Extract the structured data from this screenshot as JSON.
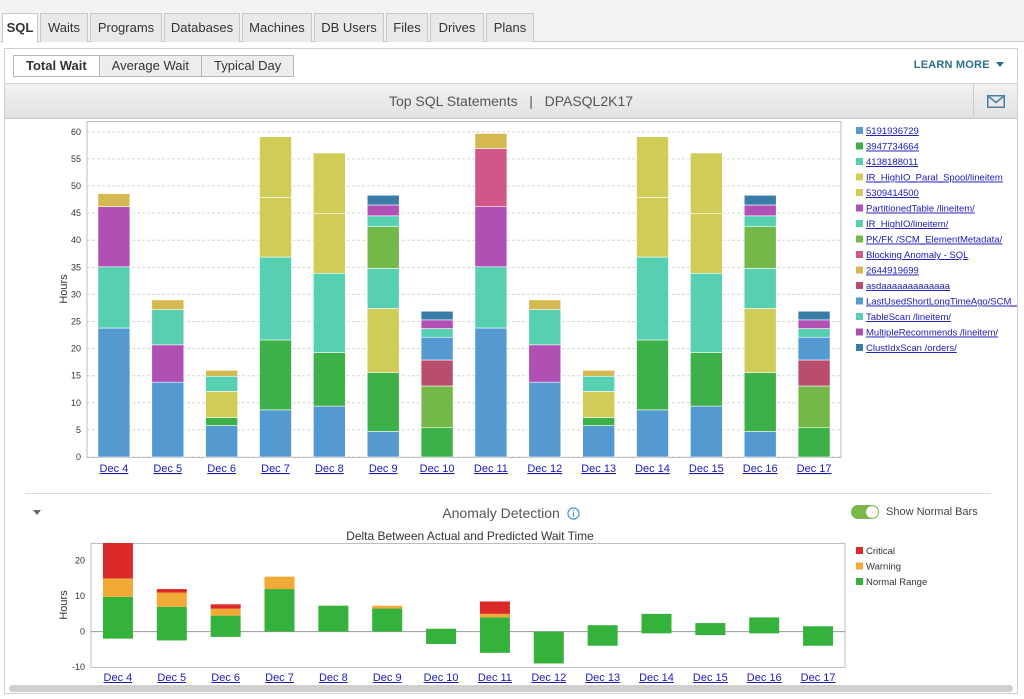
{
  "tabs": [
    "SQL",
    "Waits",
    "Programs",
    "Databases",
    "Machines",
    "DB Users",
    "Files",
    "Drives",
    "Plans"
  ],
  "active_tab": "SQL",
  "subtabs": [
    "Total Wait",
    "Average Wait",
    "Typical Day"
  ],
  "active_subtab": "Total Wait",
  "learn_more": "LEARN MORE",
  "chart_title": "Top SQL Statements   |   DPASQL2K17",
  "anomaly": {
    "title": "Anomaly Detection",
    "toggle_label": "Show Normal Bars",
    "toggle_on": true
  },
  "chart_data": [
    {
      "type": "bar",
      "stacked": true,
      "title": "Top SQL Statements | DPASQL2K17",
      "ylabel": "Hours",
      "ylim": [
        0,
        62
      ],
      "yticks": [
        0,
        5,
        10,
        15,
        20,
        25,
        30,
        35,
        40,
        45,
        50,
        55,
        60
      ],
      "categories": [
        "Dec 4",
        "Dec 5",
        "Dec 6",
        "Dec 7",
        "Dec 8",
        "Dec 9",
        "Dec 10",
        "Dec 11",
        "Dec 12",
        "Dec 13",
        "Dec 14",
        "Dec 15",
        "Dec 16",
        "Dec 17"
      ],
      "series": [
        {
          "name": "5191936729",
          "color": "#5499cf",
          "values": [
            23.8,
            13.8,
            5.8,
            8.7,
            9.4,
            4.7,
            0,
            23.8,
            13.8,
            5.8,
            8.7,
            9.4,
            4.7,
            0
          ]
        },
        {
          "name": "3947734664",
          "color": "#3db04a",
          "values": [
            0,
            0,
            1.5,
            12.9,
            9.9,
            10.9,
            5.4,
            0,
            0,
            1.5,
            12.9,
            9.9,
            10.9,
            5.4
          ]
        },
        {
          "name": "4138188011",
          "color": "#57cfb1",
          "values": [
            11.3,
            0,
            0,
            15.3,
            14.6,
            0,
            0,
            11.3,
            0,
            0,
            15.3,
            14.6,
            0,
            0
          ]
        },
        {
          "name": "IR_HighIO_Paral_Spool/lineitem",
          "color": "#cfcd58",
          "values": [
            0,
            0,
            4.8,
            11.0,
            11.0,
            0,
            0,
            0,
            0,
            4.8,
            11.0,
            11.0,
            0,
            0
          ]
        },
        {
          "name": "5309414500",
          "color": "#cfcd58",
          "values": [
            0,
            0,
            0,
            11.2,
            11.2,
            11.8,
            0,
            0,
            0,
            0,
            11.2,
            11.2,
            11.8,
            0
          ]
        },
        {
          "name": "PartitionedTable /lineitem/",
          "color": "#b04fb4",
          "values": [
            11.1,
            6.9,
            0,
            0,
            0,
            0,
            0,
            11.1,
            6.9,
            0,
            0,
            0,
            0,
            0
          ]
        },
        {
          "name": "IR_HighIO/lineitem/",
          "color": "#57cfb1",
          "values": [
            0,
            6.5,
            2.8,
            0,
            0,
            7.4,
            0,
            0,
            6.5,
            2.8,
            0,
            0,
            7.4,
            0
          ]
        },
        {
          "name": "PK/FK /SCM_ElementMetadata/",
          "color": "#74b849",
          "values": [
            0,
            0,
            0,
            0,
            0,
            7.7,
            7.7,
            0,
            0,
            0,
            0,
            0,
            7.7,
            7.7
          ]
        },
        {
          "name": "Blocking Anomaly - SQL",
          "color": "#d3568b",
          "values": [
            0,
            0,
            0,
            0,
            0,
            0,
            0,
            10.7,
            0,
            0,
            0,
            0,
            0,
            0
          ]
        },
        {
          "name": "2644919699",
          "color": "#d6b851",
          "values": [
            2.4,
            1.8,
            1.1,
            0,
            0,
            0,
            0,
            2.8,
            1.8,
            1.1,
            0,
            0,
            0,
            0
          ]
        },
        {
          "name": "asdaaaaaaaaaaaaa",
          "color": "#b94d6c",
          "values": [
            0,
            0,
            0,
            0,
            0,
            0,
            4.8,
            0,
            0,
            0,
            0,
            0,
            0,
            4.8
          ]
        },
        {
          "name": "LastUsedShortLongTimeAgo/SCM_/",
          "color": "#5499cf",
          "values": [
            0,
            0,
            0,
            0,
            0,
            0,
            4.2,
            0,
            0,
            0,
            0,
            0,
            0,
            4.2
          ]
        },
        {
          "name": "TableScan /lineitem/",
          "color": "#57cfb1",
          "values": [
            0,
            0,
            0,
            0,
            0,
            2.0,
            1.6,
            0,
            0,
            0,
            0,
            0,
            2.0,
            1.6
          ]
        },
        {
          "name": "MultipleRecommends /lineitem/",
          "color": "#b04fb4",
          "values": [
            0,
            0,
            0,
            0,
            0,
            2.0,
            1.6,
            0,
            0,
            0,
            0,
            0,
            2.0,
            1.6
          ]
        },
        {
          "name": "ClustIdxScan /orders/",
          "color": "#3a7ca8",
          "values": [
            0,
            0,
            0,
            0,
            0,
            1.8,
            1.6,
            0,
            0,
            0,
            0,
            0,
            1.8,
            1.6
          ]
        }
      ]
    },
    {
      "type": "bar",
      "title": "Delta Between Actual and Predicted Wait Time",
      "ylabel": "Hours",
      "ylim": [
        -10,
        25
      ],
      "yticks": [
        -10,
        0,
        10,
        20
      ],
      "categories": [
        "Dec 4",
        "Dec 5",
        "Dec 6",
        "Dec 7",
        "Dec 8",
        "Dec 9",
        "Dec 10",
        "Dec 11",
        "Dec 12",
        "Dec 13",
        "Dec 14",
        "Dec 15",
        "Dec 16",
        "Dec 17"
      ],
      "legend": [
        {
          "name": "Critical",
          "color": "#dc2a2a"
        },
        {
          "name": "Warning",
          "color": "#f1aa36"
        },
        {
          "name": "Normal Range",
          "color": "#35b23c"
        }
      ],
      "normal_range": [
        [
          -2,
          9.8
        ],
        [
          -2.5,
          7
        ],
        [
          -1.5,
          4.5
        ],
        [
          0,
          12
        ],
        [
          0,
          7.3
        ],
        [
          0,
          6.5
        ],
        [
          -3.5,
          0.8
        ],
        [
          -6,
          4
        ],
        [
          -9,
          0
        ],
        [
          -4,
          1.8
        ],
        [
          -0.5,
          5
        ],
        [
          -1,
          2.4
        ],
        [
          -0.5,
          4
        ],
        [
          -4,
          1.5
        ]
      ],
      "warning": [
        [
          9.8,
          15
        ],
        [
          7,
          11
        ],
        [
          4.5,
          6.5
        ],
        [
          12,
          15.5
        ],
        null,
        [
          6.5,
          7.3
        ],
        null,
        [
          4,
          5
        ],
        null,
        null,
        null,
        null,
        null,
        null
      ],
      "critical": [
        [
          15,
          25
        ],
        [
          11,
          12
        ],
        [
          6.5,
          7.7
        ],
        null,
        null,
        null,
        null,
        [
          5,
          8.5
        ],
        null,
        null,
        null,
        null,
        null,
        null
      ]
    }
  ]
}
